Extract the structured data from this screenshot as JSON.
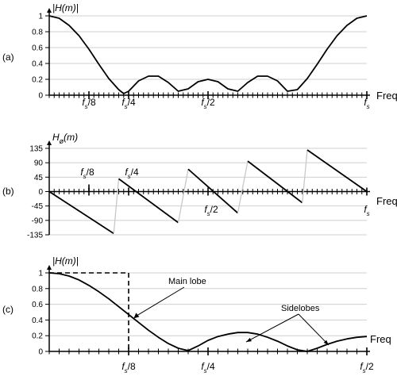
{
  "colors": {
    "ink": "#000000",
    "grid": "#cfcfcf",
    "wrap_line": "#c8c8c8"
  },
  "chart_data": [
    {
      "panel_label": "(a)",
      "type": "line",
      "ylabel_main": "|H(m)|",
      "ylabel_sub": "",
      "xlabel": "Freq",
      "xlim": [
        0,
        1
      ],
      "ylim": [
        0,
        1
      ],
      "yticks": [
        "0",
        "0.2",
        "0.4",
        "0.6",
        "0.8",
        "1"
      ],
      "ytick_values": [
        0,
        0.2,
        0.4,
        0.6,
        0.8,
        1
      ],
      "xtick_labels": [
        {
          "x": 0.125,
          "main": "f",
          "sub": "s",
          "rest": "/8"
        },
        {
          "x": 0.25,
          "main": "f",
          "sub": "s",
          "rest": "/4"
        },
        {
          "x": 0.5,
          "main": "f",
          "sub": "s",
          "rest": "/2"
        },
        {
          "x": 1.0,
          "main": "f",
          "sub": "s",
          "rest": ""
        }
      ],
      "grid": true,
      "minor_ticks": 64,
      "series": [
        {
          "x": [
            0,
            0.03125,
            0.0625,
            0.09375,
            0.125,
            0.15625,
            0.1875,
            0.21875,
            0.234375,
            0.25,
            0.28125,
            0.3125,
            0.34375,
            0.375,
            0.40625,
            0.4375,
            0.46875,
            0.5,
            0.53125,
            0.5625,
            0.59375,
            0.625,
            0.65625,
            0.6875,
            0.71875,
            0.75,
            0.78125,
            0.8125,
            0.84375,
            0.875,
            0.90625,
            0.9375,
            0.96875,
            1.0
          ],
          "values": [
            1.0,
            0.97,
            0.88,
            0.75,
            0.58,
            0.39,
            0.21,
            0.07,
            0.02,
            0.05,
            0.18,
            0.24,
            0.24,
            0.16,
            0.05,
            0.08,
            0.17,
            0.2,
            0.17,
            0.08,
            0.05,
            0.16,
            0.24,
            0.24,
            0.18,
            0.05,
            0.07,
            0.21,
            0.39,
            0.58,
            0.75,
            0.88,
            0.97,
            1.0
          ]
        }
      ]
    },
    {
      "panel_label": "(b)",
      "type": "line",
      "ylabel_main": "H",
      "ylabel_sub": "ø",
      "ylabel_rest": "(m)",
      "xlabel": "Freq",
      "xlim": [
        0,
        1
      ],
      "ylim": [
        -135,
        135
      ],
      "yticks": [
        "-135",
        "-90",
        "-45",
        "0",
        "45",
        "90",
        "135"
      ],
      "ytick_values": [
        -135,
        -90,
        -45,
        0,
        45,
        90,
        135
      ],
      "xtick_labels": [
        {
          "x": 0.125,
          "main": "f",
          "sub": "s",
          "rest": "/8"
        },
        {
          "x": 0.25,
          "main": "f",
          "sub": "s",
          "rest": "/4"
        },
        {
          "x": 0.5,
          "main": "f",
          "sub": "s",
          "rest": "/2"
        },
        {
          "x": 1.0,
          "main": "f",
          "sub": "s",
          "rest": ""
        }
      ],
      "grid": true,
      "minor_ticks": 64,
      "phase_segments": [
        {
          "x": [
            0,
            0.203125
          ],
          "values": [
            0,
            -131
          ]
        },
        {
          "x": [
            0.203125,
            0.21875
          ],
          "values": [
            -131,
            40
          ],
          "wrap": true
        },
        {
          "x": [
            0.21875,
            0.40625
          ],
          "values": [
            40,
            -97
          ]
        },
        {
          "x": [
            0.40625,
            0.4375
          ],
          "values": [
            -97,
            70
          ],
          "wrap": true
        },
        {
          "x": [
            0.4375,
            0.59375
          ],
          "values": [
            70,
            -67
          ]
        },
        {
          "x": [
            0.59375,
            0.625
          ],
          "values": [
            -67,
            95
          ],
          "wrap": true
        },
        {
          "x": [
            0.625,
            0.796875
          ],
          "values": [
            95,
            -35
          ]
        },
        {
          "x": [
            0.796875,
            0.8125
          ],
          "values": [
            -35,
            130
          ],
          "wrap": true
        },
        {
          "x": [
            0.8125,
            1.0
          ],
          "values": [
            130,
            0
          ]
        }
      ]
    },
    {
      "panel_label": "(c)",
      "type": "line",
      "ylabel_main": "|H(m)|",
      "ylabel_sub": "",
      "xlabel": "Freq",
      "xlim": [
        0,
        0.5
      ],
      "ylim": [
        0,
        1
      ],
      "yticks": [
        "0",
        "0.2",
        "0.4",
        "0.6",
        "0.8",
        "1"
      ],
      "ytick_values": [
        0,
        0.2,
        0.4,
        0.6,
        0.8,
        1
      ],
      "xtick_labels": [
        {
          "x": 0.125,
          "main": "f",
          "sub": "s",
          "rest": "/8"
        },
        {
          "x": 0.25,
          "main": "f",
          "sub": "s",
          "rest": "/4"
        },
        {
          "x": 0.5,
          "main": "f",
          "sub": "s",
          "rest": "/2"
        }
      ],
      "grid": true,
      "minor_ticks": 32,
      "series": [
        {
          "x": [
            0,
            0.015625,
            0.03125,
            0.046875,
            0.0625,
            0.078125,
            0.09375,
            0.109375,
            0.125,
            0.140625,
            0.15625,
            0.171875,
            0.1875,
            0.203125,
            0.21875,
            0.234375,
            0.25,
            0.265625,
            0.28125,
            0.296875,
            0.3125,
            0.328125,
            0.34375,
            0.359375,
            0.375,
            0.390625,
            0.40625,
            0.421875,
            0.4375,
            0.453125,
            0.46875,
            0.484375,
            0.5
          ],
          "values": [
            1.0,
            0.99,
            0.96,
            0.91,
            0.84,
            0.76,
            0.67,
            0.57,
            0.47,
            0.37,
            0.27,
            0.18,
            0.1,
            0.04,
            0.01,
            0.07,
            0.14,
            0.19,
            0.22,
            0.24,
            0.24,
            0.22,
            0.18,
            0.13,
            0.07,
            0.02,
            0.0,
            0.04,
            0.09,
            0.13,
            0.16,
            0.18,
            0.19
          ]
        }
      ],
      "dashed_box": {
        "x": 0.125,
        "y": 1.0
      },
      "annotations": {
        "main_lobe": {
          "text": "Main lobe",
          "point": {
            "x": 0.133,
            "y": 0.42
          }
        },
        "sidelobes": {
          "text": "Sidelobes",
          "points": [
            {
              "x": 0.31,
              "y": 0.12
            },
            {
              "x": 0.44,
              "y": 0.08
            }
          ]
        }
      }
    }
  ]
}
